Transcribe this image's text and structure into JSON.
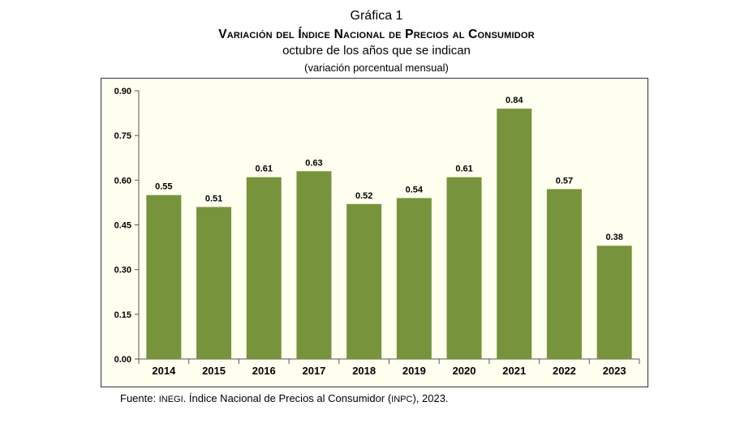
{
  "header": {
    "label": "Gráfica 1",
    "title": "Variación del Índice Nacional de Precios al Consumidor",
    "subtitle": "octubre de los años que se indican",
    "note": "(variación porcentual mensual)"
  },
  "source": {
    "prefix": "Fuente: ",
    "org": "INEGI",
    "mid": ". Índice Nacional de Precios al Consumidor (",
    "abbr": "INPC",
    "suffix": "), 2023."
  },
  "colors": {
    "bar": "#77933c",
    "plot_bg": "#fffff0"
  },
  "chart_data": {
    "type": "bar",
    "categories": [
      "2014",
      "2015",
      "2016",
      "2017",
      "2018",
      "2019",
      "2020",
      "2021",
      "2022",
      "2023"
    ],
    "values": [
      0.55,
      0.51,
      0.61,
      0.63,
      0.52,
      0.54,
      0.61,
      0.84,
      0.57,
      0.38
    ],
    "value_labels": [
      "0.55",
      "0.51",
      "0.61",
      "0.63",
      "0.52",
      "0.54",
      "0.61",
      "0.84",
      "0.57",
      "0.38"
    ],
    "y_ticks": [
      "0.00",
      "0.15",
      "0.30",
      "0.45",
      "0.60",
      "0.75",
      "0.90"
    ],
    "ylim": [
      0,
      0.9
    ],
    "grid": false,
    "legend": "none"
  }
}
